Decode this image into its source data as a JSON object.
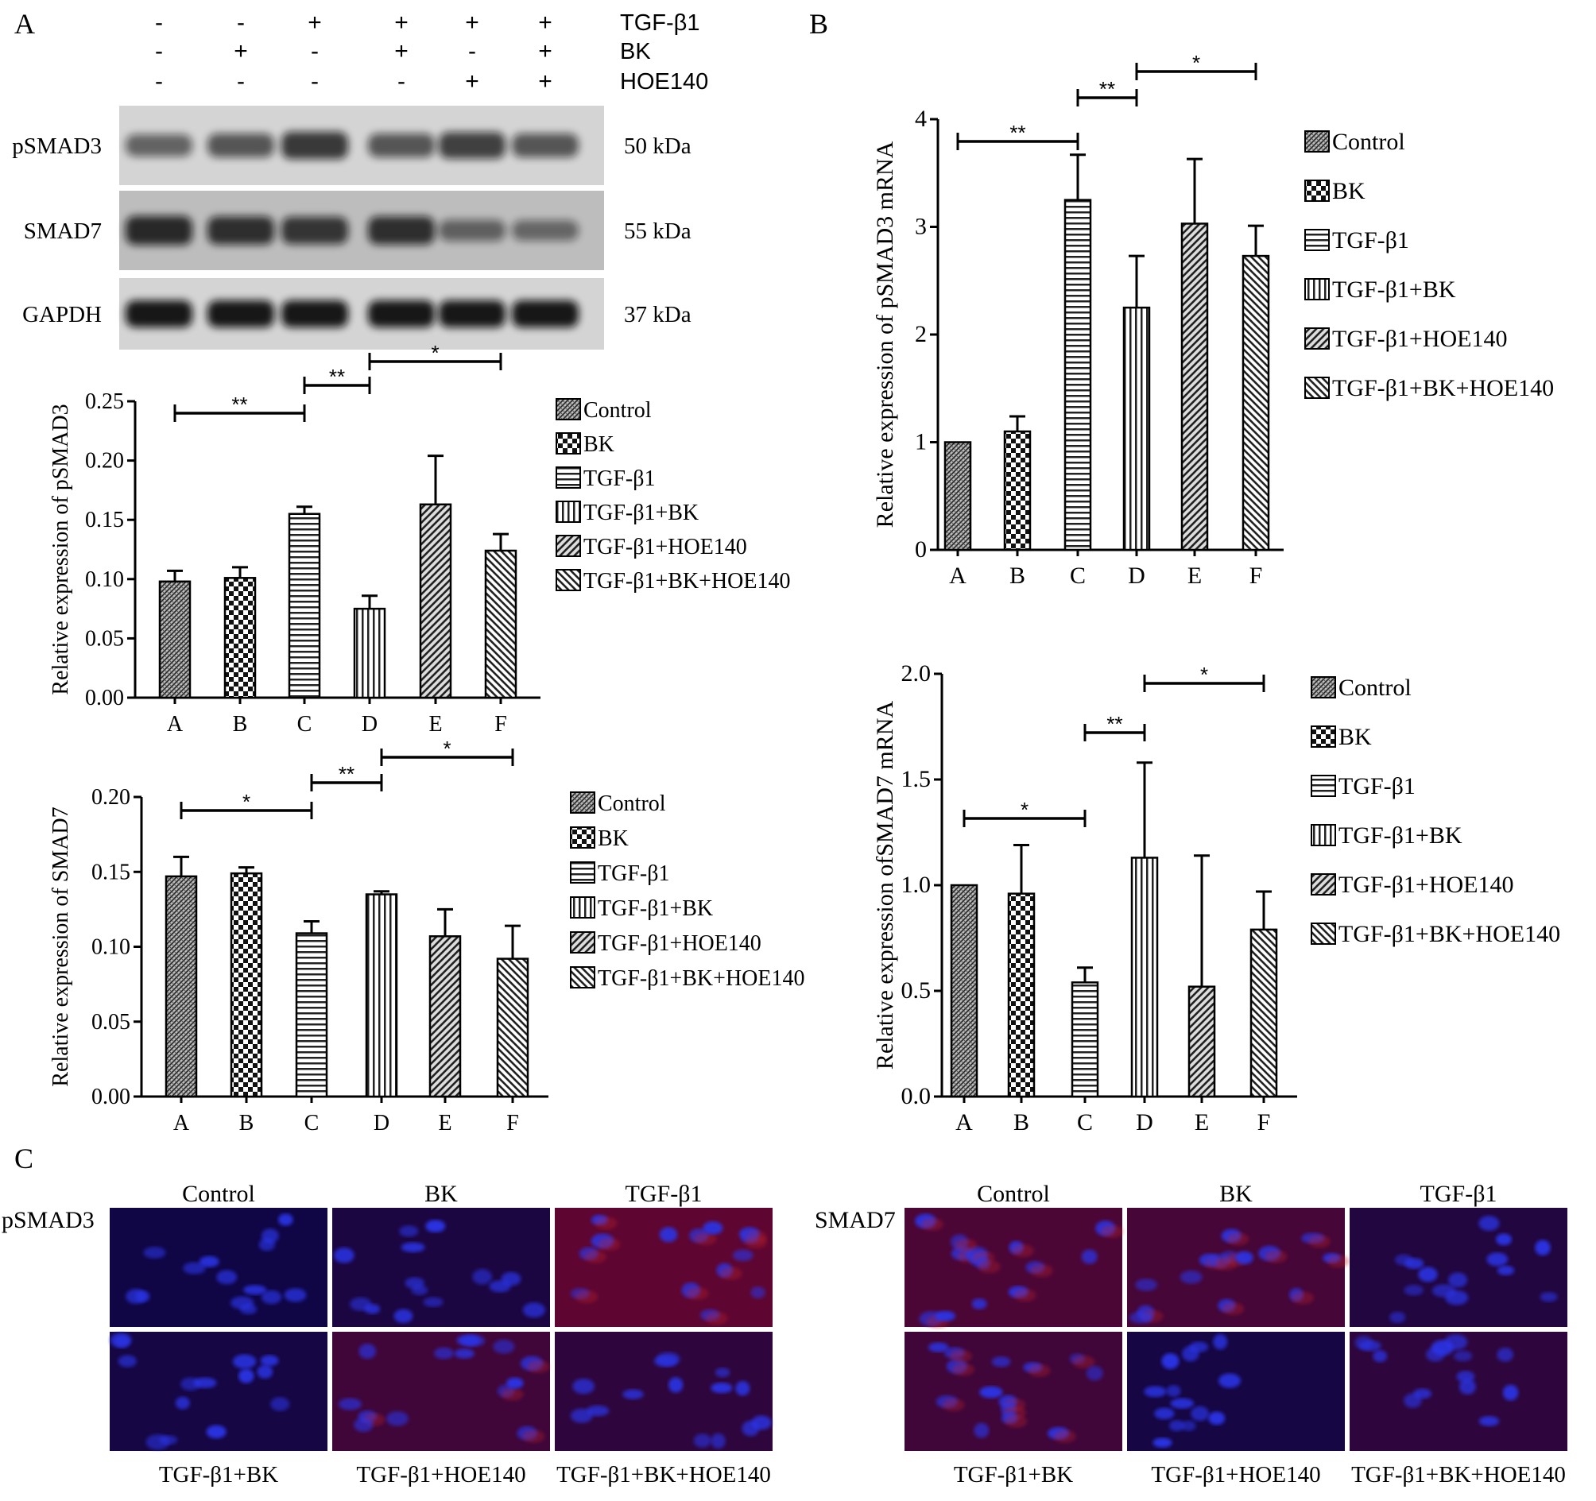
{
  "panels": {
    "A": {
      "letter": "A",
      "treatment_rows": [
        {
          "label": "TGF-β1",
          "signs": [
            "-",
            "-",
            "+",
            "+",
            "+",
            "+"
          ]
        },
        {
          "label": "BK",
          "signs": [
            "-",
            "+",
            "-",
            "+",
            "-",
            "+"
          ]
        },
        {
          "label": "HOE140",
          "signs": [
            "-",
            "-",
            "-",
            "-",
            "+",
            "+"
          ]
        }
      ],
      "blots": [
        {
          "label": "pSMAD3",
          "size": "50 kDa",
          "intensity": [
            0.45,
            0.55,
            0.75,
            0.55,
            0.7,
            0.55
          ]
        },
        {
          "label": "SMAD7",
          "size": "55 kDa",
          "intensity": [
            0.85,
            0.8,
            0.75,
            0.8,
            0.4,
            0.35
          ]
        },
        {
          "label": "GAPDH",
          "size": "37 kDa",
          "intensity": [
            1,
            1,
            1,
            1,
            1,
            1
          ]
        }
      ]
    },
    "B": {
      "letter": "B"
    },
    "C": {
      "letter": "C",
      "pSMAD3": {
        "row_label": "pSMAD3",
        "top_labels": [
          "Control",
          "BK",
          "TGF-β1"
        ],
        "bottom_labels": [
          "TGF-β1+BK",
          "TGF-β1+HOE140",
          "TGF-β1+BK+HOE140"
        ],
        "red_level": [
          0.05,
          0.15,
          0.7,
          0.1,
          0.45,
          0.3
        ]
      },
      "SMAD7": {
        "row_label": "SMAD7",
        "top_labels": [
          "Control",
          "BK",
          "TGF-β1"
        ],
        "bottom_labels": [
          "TGF-β1+BK",
          "TGF-β1+HOE140",
          "TGF-β1+BK+HOE140"
        ],
        "red_level": [
          0.55,
          0.5,
          0.2,
          0.45,
          0.1,
          0.3
        ]
      }
    }
  },
  "chart_data": [
    {
      "id": "A-pSMAD3",
      "type": "bar",
      "categories": [
        "A",
        "B",
        "C",
        "D",
        "E",
        "F"
      ],
      "values": [
        0.098,
        0.101,
        0.155,
        0.075,
        0.163,
        0.124
      ],
      "errors": [
        0.009,
        0.009,
        0.006,
        0.011,
        0.041,
        0.014
      ],
      "ylabel": "Relative expression of pSMAD3",
      "ylim": [
        0,
        0.25
      ],
      "yticks": [
        "0.00",
        "0.05",
        "0.10",
        "0.15",
        "0.20",
        "0.25"
      ],
      "legend": [
        "Control",
        "BK",
        "TGF-β1",
        "TGF-β1+BK",
        "TGF-β1+HOE140",
        "TGF-β1+BK+HOE140"
      ],
      "legend_position": "right",
      "significance": [
        {
          "from": "A",
          "to": "C",
          "label": "**"
        },
        {
          "from": "C",
          "to": "D",
          "label": "**"
        },
        {
          "from": "D",
          "to": "F",
          "label": "*"
        }
      ]
    },
    {
      "id": "A-SMAD7",
      "type": "bar",
      "categories": [
        "A",
        "B",
        "C",
        "D",
        "E",
        "F"
      ],
      "values": [
        0.147,
        0.149,
        0.109,
        0.135,
        0.107,
        0.092
      ],
      "errors": [
        0.013,
        0.004,
        0.008,
        0.002,
        0.018,
        0.022
      ],
      "ylabel": "Relative expression of SMAD7",
      "ylim": [
        0,
        0.2
      ],
      "yticks": [
        "0.00",
        "0.05",
        "0.10",
        "0.15",
        "0.20"
      ],
      "legend": [
        "Control",
        "BK",
        "TGF-β1",
        "TGF-β1+BK",
        "TGF-β1+HOE140",
        "TGF-β1+BK+HOE140"
      ],
      "legend_position": "right",
      "significance": [
        {
          "from": "A",
          "to": "C",
          "label": "*"
        },
        {
          "from": "C",
          "to": "D",
          "label": "**"
        },
        {
          "from": "D",
          "to": "F",
          "label": "*"
        }
      ]
    },
    {
      "id": "B-pSMAD3",
      "type": "bar",
      "categories": [
        "A",
        "B",
        "C",
        "D",
        "E",
        "F"
      ],
      "values": [
        1.0,
        1.1,
        3.25,
        2.25,
        3.03,
        2.73
      ],
      "errors": [
        0.0,
        0.14,
        0.42,
        0.48,
        0.6,
        0.28
      ],
      "ylabel": "Relative expression of pSMAD3 mRNA",
      "ylim": [
        0,
        4
      ],
      "yticks": [
        "0",
        "1",
        "2",
        "3",
        "4"
      ],
      "legend": [
        "Control",
        "BK",
        "TGF-β1",
        "TGF-β1+BK",
        "TGF-β1+HOE140",
        "TGF-β1+BK+HOE140"
      ],
      "legend_position": "right",
      "significance": [
        {
          "from": "A",
          "to": "C",
          "label": "**"
        },
        {
          "from": "C",
          "to": "D",
          "label": "**"
        },
        {
          "from": "D",
          "to": "F",
          "label": "*"
        }
      ]
    },
    {
      "id": "B-SMAD7",
      "type": "bar",
      "categories": [
        "A",
        "B",
        "C",
        "D",
        "E",
        "F"
      ],
      "values": [
        1.0,
        0.96,
        0.54,
        1.13,
        0.52,
        0.79
      ],
      "errors": [
        0.0,
        0.23,
        0.07,
        0.45,
        0.62,
        0.18
      ],
      "ylabel": "Relative expression ofSMAD7 mRNA",
      "ylim": [
        0,
        2.0
      ],
      "yticks": [
        "0.0",
        "0.5",
        "1.0",
        "1.5",
        "2.0"
      ],
      "legend": [
        "Control",
        "BK",
        "TGF-β1",
        "TGF-β1+BK",
        "TGF-β1+HOE140",
        "TGF-β1+BK+HOE140"
      ],
      "legend_position": "right",
      "significance": [
        {
          "from": "A",
          "to": "C",
          "label": "*"
        },
        {
          "from": "C",
          "to": "D",
          "label": "**"
        },
        {
          "from": "D",
          "to": "F",
          "label": "*"
        }
      ]
    }
  ]
}
